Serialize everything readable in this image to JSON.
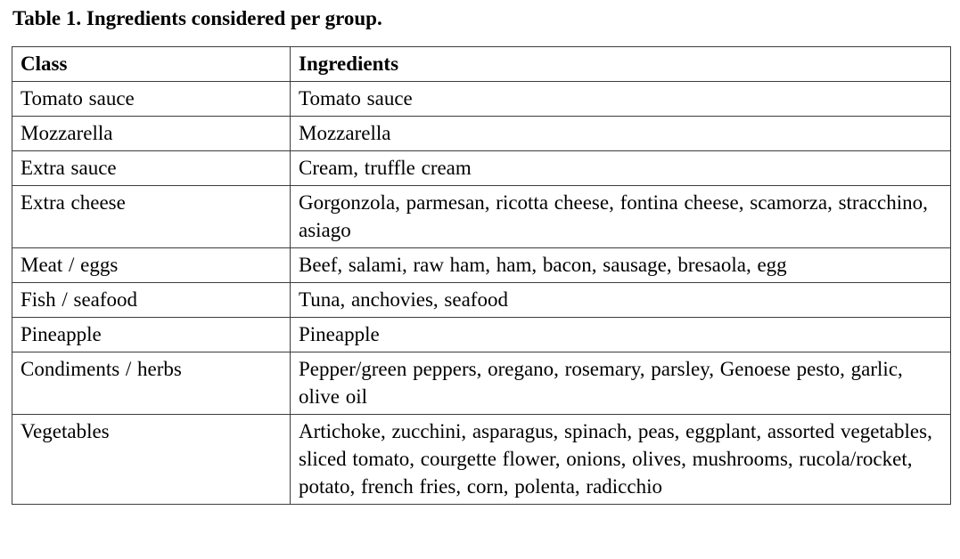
{
  "caption": "Table 1. Ingredients considered per group.",
  "colors": {
    "border-color": "#3c3c3c",
    "text-color": "#000000",
    "bg-color": "#ffffff"
  },
  "table": {
    "headers": [
      "Class",
      "Ingredients"
    ],
    "rows": [
      {
        "class": "Tomato sauce",
        "ingredients": "Tomato sauce"
      },
      {
        "class": "Mozzarella",
        "ingredients": "Mozzarella"
      },
      {
        "class": "Extra sauce",
        "ingredients": "Cream, truffle cream"
      },
      {
        "class": "Extra cheese",
        "ingredients": "Gorgonzola, parmesan, ricotta cheese, fontina cheese, scamorza, stracchino, asiago"
      },
      {
        "class": "Meat / eggs",
        "ingredients": "Beef, salami, raw ham, ham, bacon, sausage, bresaola, egg"
      },
      {
        "class": "Fish / seafood",
        "ingredients": "Tuna, anchovies, seafood"
      },
      {
        "class": "Pineapple",
        "ingredients": "Pineapple"
      },
      {
        "class": "Condiments / herbs",
        "ingredients": "Pepper/green peppers, oregano, rosemary, parsley, Genoese pesto, garlic, olive oil"
      },
      {
        "class": "Vegetables",
        "ingredients": "Artichoke, zucchini, asparagus, spinach, peas, eggplant, assorted vegetables, sliced tomato, courgette flower, onions, olives, mushrooms, rucola/rocket, potato, french fries, corn, polenta, radicchio"
      }
    ]
  }
}
